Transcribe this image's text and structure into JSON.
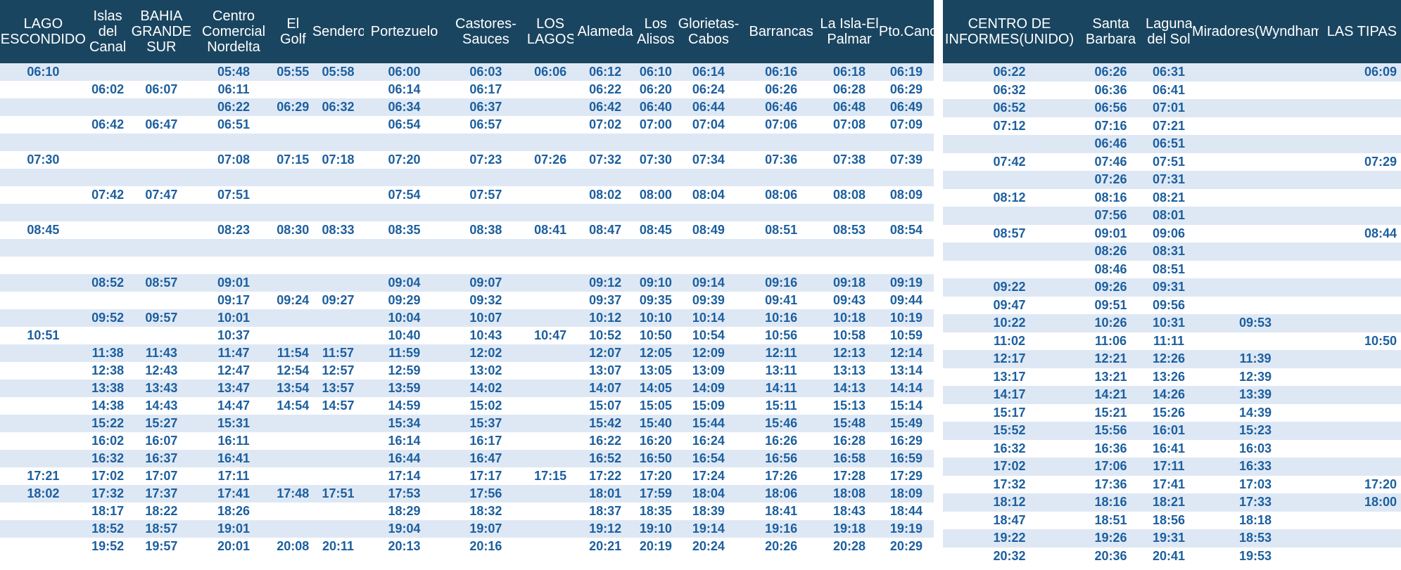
{
  "left_table": {
    "headers": [
      "LAGO ESCONDIDO",
      "Islas del Canal",
      "BAHIA GRANDE SUR",
      "Centro Comercial Nordelta",
      "El Golf",
      "Sendero",
      "Portezuelo",
      "Castores-Sauces",
      "LOS LAGOS",
      "Alameda",
      "Los Alisos",
      "Glorietas-Cabos",
      "Barrancas",
      "La Isla-El Palmar",
      "Pto.Canoas"
    ],
    "rows": [
      [
        "06:10",
        "",
        "",
        "05:48",
        "05:55",
        "05:58",
        "06:00",
        "06:03",
        "06:06",
        "06:12",
        "06:10",
        "06:14",
        "06:16",
        "06:18",
        "06:19"
      ],
      [
        "",
        "06:02",
        "06:07",
        "06:11",
        "",
        "",
        "06:14",
        "06:17",
        "",
        "06:22",
        "06:20",
        "06:24",
        "06:26",
        "06:28",
        "06:29"
      ],
      [
        "",
        "",
        "",
        "06:22",
        "06:29",
        "06:32",
        "06:34",
        "06:37",
        "",
        "06:42",
        "06:40",
        "06:44",
        "06:46",
        "06:48",
        "06:49"
      ],
      [
        "",
        "06:42",
        "06:47",
        "06:51",
        "",
        "",
        "06:54",
        "06:57",
        "",
        "07:02",
        "07:00",
        "07:04",
        "07:06",
        "07:08",
        "07:09"
      ],
      [
        "",
        "",
        "",
        "",
        "",
        "",
        "",
        "",
        "",
        "",
        "",
        "",
        "",
        "",
        ""
      ],
      [
        "07:30",
        "",
        "",
        "07:08",
        "07:15",
        "07:18",
        "07:20",
        "07:23",
        "07:26",
        "07:32",
        "07:30",
        "07:34",
        "07:36",
        "07:38",
        "07:39"
      ],
      [
        "",
        "",
        "",
        "",
        "",
        "",
        "",
        "",
        "",
        "",
        "",
        "",
        "",
        "",
        ""
      ],
      [
        "",
        "07:42",
        "07:47",
        "07:51",
        "",
        "",
        "07:54",
        "07:57",
        "",
        "08:02",
        "08:00",
        "08:04",
        "08:06",
        "08:08",
        "08:09"
      ],
      [
        "",
        "",
        "",
        "",
        "",
        "",
        "",
        "",
        "",
        "",
        "",
        "",
        "",
        "",
        ""
      ],
      [
        "08:45",
        "",
        "",
        "08:23",
        "08:30",
        "08:33",
        "08:35",
        "08:38",
        "08:41",
        "08:47",
        "08:45",
        "08:49",
        "08:51",
        "08:53",
        "08:54"
      ],
      [
        "",
        "",
        "",
        "",
        "",
        "",
        "",
        "",
        "",
        "",
        "",
        "",
        "",
        "",
        ""
      ],
      [
        "",
        "",
        "",
        "",
        "",
        "",
        "",
        "",
        "",
        "",
        "",
        "",
        "",
        "",
        ""
      ],
      [
        "",
        "08:52",
        "08:57",
        "09:01",
        "",
        "",
        "09:04",
        "09:07",
        "",
        "09:12",
        "09:10",
        "09:14",
        "09:16",
        "09:18",
        "09:19"
      ],
      [
        "",
        "",
        "",
        "09:17",
        "09:24",
        "09:27",
        "09:29",
        "09:32",
        "",
        "09:37",
        "09:35",
        "09:39",
        "09:41",
        "09:43",
        "09:44"
      ],
      [
        "",
        "09:52",
        "09:57",
        "10:01",
        "",
        "",
        "10:04",
        "10:07",
        "",
        "10:12",
        "10:10",
        "10:14",
        "10:16",
        "10:18",
        "10:19"
      ],
      [
        "10:51",
        "",
        "",
        "10:37",
        "",
        "",
        "10:40",
        "10:43",
        "10:47",
        "10:52",
        "10:50",
        "10:54",
        "10:56",
        "10:58",
        "10:59"
      ],
      [
        "",
        "11:38",
        "11:43",
        "11:47",
        "11:54",
        "11:57",
        "11:59",
        "12:02",
        "",
        "12:07",
        "12:05",
        "12:09",
        "12:11",
        "12:13",
        "12:14"
      ],
      [
        "",
        "12:38",
        "12:43",
        "12:47",
        "12:54",
        "12:57",
        "12:59",
        "13:02",
        "",
        "13:07",
        "13:05",
        "13:09",
        "13:11",
        "13:13",
        "13:14"
      ],
      [
        "",
        "13:38",
        "13:43",
        "13:47",
        "13:54",
        "13:57",
        "13:59",
        "14:02",
        "",
        "14:07",
        "14:05",
        "14:09",
        "14:11",
        "14:13",
        "14:14"
      ],
      [
        "",
        "14:38",
        "14:43",
        "14:47",
        "14:54",
        "14:57",
        "14:59",
        "15:02",
        "",
        "15:07",
        "15:05",
        "15:09",
        "15:11",
        "15:13",
        "15:14"
      ],
      [
        "",
        "15:22",
        "15:27",
        "15:31",
        "",
        "",
        "15:34",
        "15:37",
        "",
        "15:42",
        "15:40",
        "15:44",
        "15:46",
        "15:48",
        "15:49"
      ],
      [
        "",
        "16:02",
        "16:07",
        "16:11",
        "",
        "",
        "16:14",
        "16:17",
        "",
        "16:22",
        "16:20",
        "16:24",
        "16:26",
        "16:28",
        "16:29"
      ],
      [
        "",
        "16:32",
        "16:37",
        "16:41",
        "",
        "",
        "16:44",
        "16:47",
        "",
        "16:52",
        "16:50",
        "16:54",
        "16:56",
        "16:58",
        "16:59"
      ],
      [
        "17:21",
        "17:02",
        "17:07",
        "17:11",
        "",
        "",
        "17:14",
        "17:17",
        "17:15",
        "17:22",
        "17:20",
        "17:24",
        "17:26",
        "17:28",
        "17:29"
      ],
      [
        "18:02",
        "17:32",
        "17:37",
        "17:41",
        "17:48",
        "17:51",
        "17:53",
        "17:56",
        "",
        "18:01",
        "17:59",
        "18:04",
        "18:06",
        "18:08",
        "18:09"
      ],
      [
        "",
        "18:17",
        "18:22",
        "18:26",
        "",
        "",
        "18:29",
        "18:32",
        "",
        "18:37",
        "18:35",
        "18:39",
        "18:41",
        "18:43",
        "18:44"
      ],
      [
        "",
        "18:52",
        "18:57",
        "19:01",
        "",
        "",
        "19:04",
        "19:07",
        "",
        "19:12",
        "19:10",
        "19:14",
        "19:16",
        "19:18",
        "19:19"
      ],
      [
        "",
        "19:52",
        "19:57",
        "20:01",
        "20:08",
        "20:11",
        "20:13",
        "20:16",
        "",
        "20:21",
        "20:19",
        "20:24",
        "20:26",
        "20:28",
        "20:29"
      ]
    ]
  },
  "right_table": {
    "headers": [
      "CENTRO DE INFORMES(UNIDO)",
      "Santa Barbara",
      "Laguna del Sol",
      "Miradores(Wyndham)",
      "LAS TIPAS"
    ],
    "rows": [
      [
        "06:22",
        "06:26",
        "06:31",
        "",
        "06:09"
      ],
      [
        "06:32",
        "06:36",
        "06:41",
        "",
        ""
      ],
      [
        "06:52",
        "06:56",
        "07:01",
        "",
        ""
      ],
      [
        "07:12",
        "07:16",
        "07:21",
        "",
        ""
      ],
      [
        "",
        "06:46",
        "06:51",
        "",
        ""
      ],
      [
        "07:42",
        "07:46",
        "07:51",
        "",
        "07:29"
      ],
      [
        "",
        "07:26",
        "07:31",
        "",
        ""
      ],
      [
        "08:12",
        "08:16",
        "08:21",
        "",
        ""
      ],
      [
        "",
        "07:56",
        "08:01",
        "",
        ""
      ],
      [
        "08:57",
        "09:01",
        "09:06",
        "",
        "08:44"
      ],
      [
        "",
        "08:26",
        "08:31",
        "",
        ""
      ],
      [
        "",
        "08:46",
        "08:51",
        "",
        ""
      ],
      [
        "09:22",
        "09:26",
        "09:31",
        "",
        ""
      ],
      [
        "09:47",
        "09:51",
        "09:56",
        "",
        ""
      ],
      [
        "10:22",
        "10:26",
        "10:31",
        "09:53",
        ""
      ],
      [
        "11:02",
        "11:06",
        "11:11",
        "",
        "10:50"
      ],
      [
        "12:17",
        "12:21",
        "12:26",
        "11:39",
        ""
      ],
      [
        "13:17",
        "13:21",
        "13:26",
        "12:39",
        ""
      ],
      [
        "14:17",
        "14:21",
        "14:26",
        "13:39",
        ""
      ],
      [
        "15:17",
        "15:21",
        "15:26",
        "14:39",
        ""
      ],
      [
        "15:52",
        "15:56",
        "16:01",
        "15:23",
        ""
      ],
      [
        "16:32",
        "16:36",
        "16:41",
        "16:03",
        ""
      ],
      [
        "17:02",
        "17:06",
        "17:11",
        "16:33",
        ""
      ],
      [
        "17:32",
        "17:36",
        "17:41",
        "17:03",
        "17:20"
      ],
      [
        "18:12",
        "18:16",
        "18:21",
        "17:33",
        "18:00"
      ],
      [
        "18:47",
        "18:51",
        "18:56",
        "18:18",
        ""
      ],
      [
        "19:22",
        "19:26",
        "19:31",
        "18:53",
        ""
      ],
      [
        "20:32",
        "20:36",
        "20:41",
        "19:53",
        ""
      ]
    ]
  }
}
